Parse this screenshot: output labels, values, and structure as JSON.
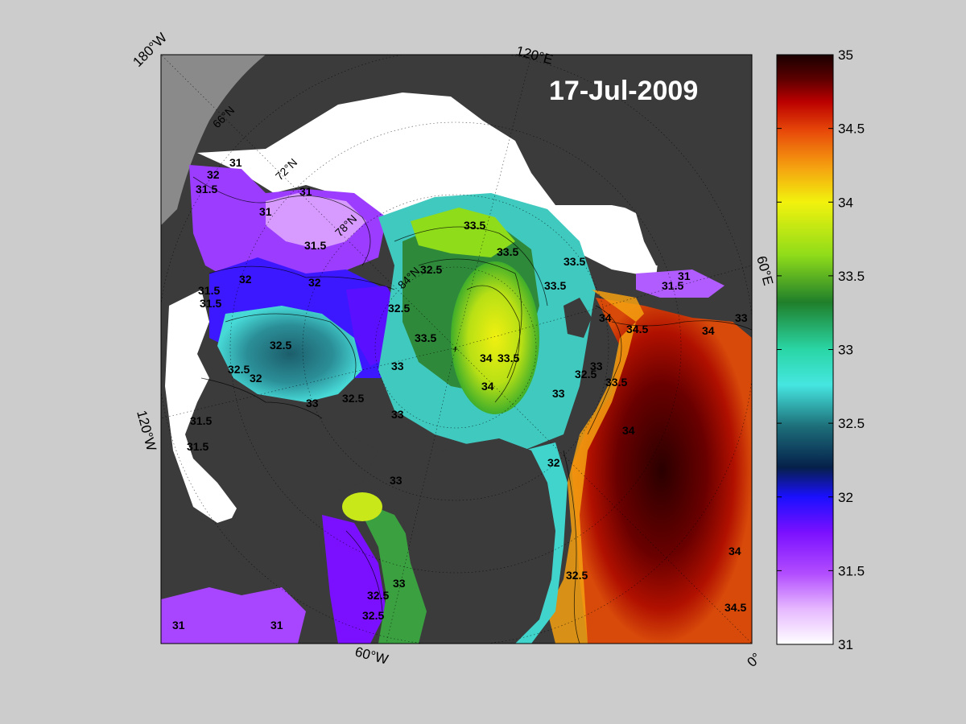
{
  "title": "17-Jul-2009",
  "corner_labels": {
    "top_left": "180°W",
    "top_center": "120°E",
    "right_middle": "60°E",
    "left_middle": "120°W",
    "bottom_center": "60°W",
    "bottom_right": "0°"
  },
  "grid_labels": {
    "lat_66": "66°N",
    "lat_72": "72°N",
    "lat_78": "78°N",
    "lat_84": "84°N"
  },
  "colorbar": {
    "min": 31,
    "max": 35,
    "ticks": [
      "35",
      "34.5",
      "34",
      "33.5",
      "33",
      "32.5",
      "32",
      "31.5",
      "31"
    ],
    "colormap": [
      "#ffffff",
      "#e6b8ff",
      "#b24dff",
      "#7a10ff",
      "#1a10ff",
      "#05204a",
      "#1d6f7a",
      "#45e6e0",
      "#2ad6a6",
      "#1f7f2a",
      "#8fdc1a",
      "#f2f20d",
      "#f5a010",
      "#e84a0a",
      "#bb0000",
      "#5a0000",
      "#1a0000"
    ]
  },
  "colors": {
    "land": "#3b3b3b",
    "ice": "#ffffff",
    "outside_domain": "#8a8a8a",
    "figure_background": "#cccccc"
  },
  "contour_labels": [
    "31",
    "31",
    "32",
    "31.5",
    "31",
    "31.5",
    "31.5",
    "32",
    "32",
    "31.5",
    "32.5",
    "32.5",
    "32",
    "32.5",
    "33",
    "32.5",
    "32.5",
    "33.5",
    "33.5",
    "33",
    "34",
    "33.5",
    "34",
    "33.5",
    "33",
    "33",
    "32.5",
    "33",
    "33.5",
    "34",
    "34.5",
    "34",
    "34",
    "33",
    "31.5",
    "31",
    "32.5",
    "33",
    "32.5",
    "31",
    "31",
    "34",
    "34.5",
    "33.5",
    "31.5",
    "33",
    "32.5",
    "33.5",
    "31.5",
    "32"
  ]
}
